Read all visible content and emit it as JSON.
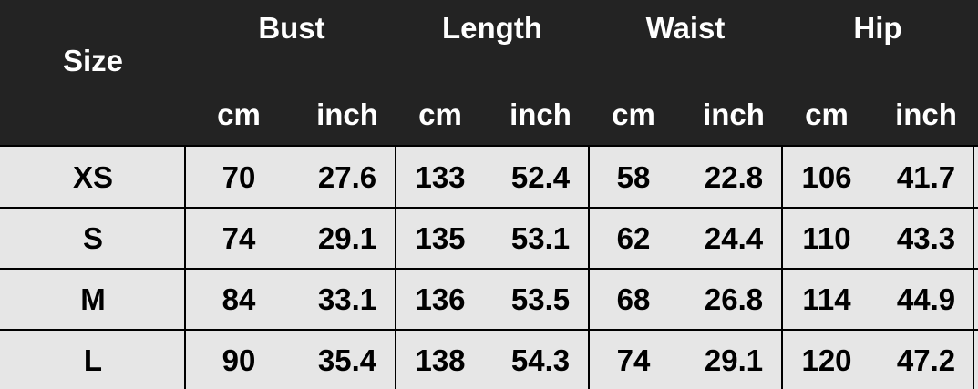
{
  "header": {
    "size": "Size",
    "groups": [
      "Bust",
      "Length",
      "Waist",
      "Hip"
    ],
    "units": [
      "cm",
      "inch",
      "cm",
      "inch",
      "cm",
      "inch",
      "cm",
      "inch"
    ]
  },
  "table": {
    "rows": [
      [
        "XS",
        "70",
        "27.6",
        "133",
        "52.4",
        "58",
        "22.8",
        "106",
        "41.7"
      ],
      [
        "S",
        "74",
        "29.1",
        "135",
        "53.1",
        "62",
        "24.4",
        "110",
        "43.3"
      ],
      [
        "M",
        "84",
        "33.1",
        "136",
        "53.5",
        "68",
        "26.8",
        "114",
        "44.9"
      ],
      [
        "L",
        "90",
        "35.4",
        "138",
        "54.3",
        "74",
        "29.1",
        "120",
        "47.2"
      ]
    ]
  }
}
